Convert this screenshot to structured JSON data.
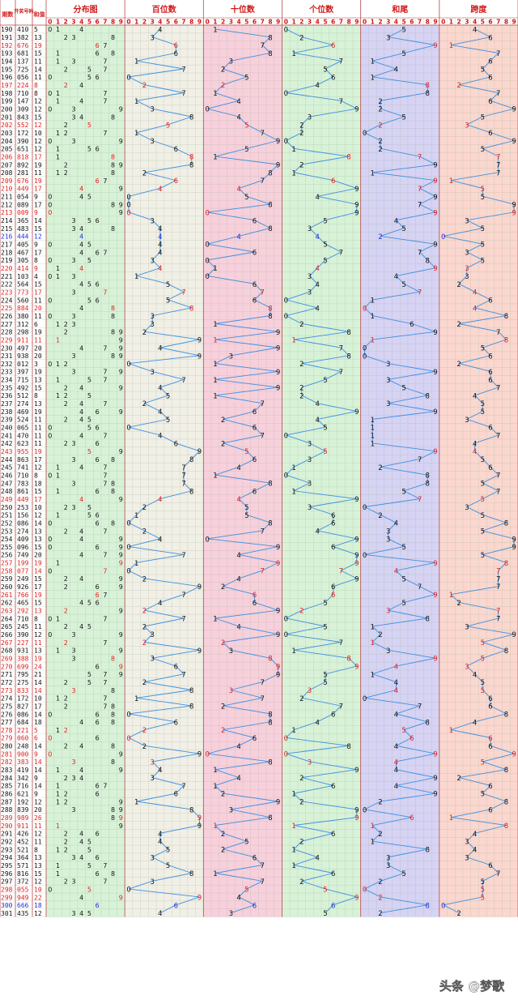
{
  "page": {
    "watermark": "头条 @梦歌"
  },
  "header": {
    "col_period": "期数",
    "col_number": "开奖号码",
    "col_sum": "和值",
    "digit_labels": [
      "0",
      "1",
      "2",
      "3",
      "4",
      "5",
      "6",
      "7",
      "8",
      "9"
    ]
  },
  "colors": {
    "line": "#3f8fe0",
    "highlight_red": "#e02020",
    "highlight_blue": "#1e2ee0",
    "normal": "#111111",
    "title": "#d01818",
    "border": "#b64a4a"
  },
  "chart_data": {
    "type": "table",
    "title": "",
    "sections": [
      {
        "key": "distribution",
        "title": "分布图",
        "type": "table",
        "color": "#d8f2d8"
      },
      {
        "key": "hundreds",
        "title": "百位数",
        "type": "line",
        "color": "#f1efe6"
      },
      {
        "key": "tens",
        "title": "十位数",
        "type": "line",
        "color": "#f8d0dc"
      },
      {
        "key": "units",
        "title": "个位数",
        "type": "line",
        "color": "#d8f2d8"
      },
      {
        "key": "sum_tail",
        "title": "和尾",
        "type": "line",
        "color": "#d7d3f4"
      },
      {
        "key": "span",
        "title": "跨度",
        "type": "line",
        "color": "#fbd7cf"
      }
    ],
    "rows": [
      [
        "190",
        "410",
        "5"
      ],
      [
        "191",
        "382",
        "13"
      ],
      [
        "192",
        "676",
        "19"
      ],
      [
        "193",
        "681",
        "15"
      ],
      [
        "194",
        "137",
        "11"
      ],
      [
        "195",
        "725",
        "14"
      ],
      [
        "196",
        "056",
        "11"
      ],
      [
        "197",
        "224",
        "8"
      ],
      [
        "198",
        "710",
        "8"
      ],
      [
        "199",
        "147",
        "12"
      ],
      [
        "200",
        "309",
        "12"
      ],
      [
        "201",
        "843",
        "15"
      ],
      [
        "202",
        "552",
        "12"
      ],
      [
        "203",
        "172",
        "10"
      ],
      [
        "204",
        "390",
        "12"
      ],
      [
        "205",
        "651",
        "12"
      ],
      [
        "206",
        "818",
        "17"
      ],
      [
        "207",
        "892",
        "19"
      ],
      [
        "208",
        "281",
        "11"
      ],
      [
        "209",
        "676",
        "19"
      ],
      [
        "210",
        "449",
        "17"
      ],
      [
        "211",
        "054",
        "9"
      ],
      [
        "212",
        "089",
        "17"
      ],
      [
        "213",
        "009",
        "9"
      ],
      [
        "214",
        "365",
        "14"
      ],
      [
        "215",
        "483",
        "15"
      ],
      [
        "216",
        "444",
        "12"
      ],
      [
        "217",
        "405",
        "9"
      ],
      [
        "218",
        "467",
        "17"
      ],
      [
        "219",
        "305",
        "8"
      ],
      [
        "220",
        "414",
        "9"
      ],
      [
        "221",
        "103",
        "4"
      ],
      [
        "222",
        "564",
        "15"
      ],
      [
        "223",
        "773",
        "17"
      ],
      [
        "224",
        "560",
        "11"
      ],
      [
        "225",
        "884",
        "20"
      ],
      [
        "226",
        "380",
        "11"
      ],
      [
        "227",
        "312",
        "6"
      ],
      [
        "228",
        "298",
        "19"
      ],
      [
        "229",
        "911",
        "11"
      ],
      [
        "230",
        "497",
        "20"
      ],
      [
        "231",
        "938",
        "20"
      ],
      [
        "232",
        "012",
        "3"
      ],
      [
        "233",
        "397",
        "19"
      ],
      [
        "234",
        "715",
        "13"
      ],
      [
        "235",
        "492",
        "15"
      ],
      [
        "236",
        "512",
        "8"
      ],
      [
        "237",
        "274",
        "13"
      ],
      [
        "238",
        "469",
        "19"
      ],
      [
        "239",
        "524",
        "11"
      ],
      [
        "240",
        "065",
        "11"
      ],
      [
        "241",
        "470",
        "11"
      ],
      [
        "242",
        "623",
        "11"
      ],
      [
        "243",
        "955",
        "19"
      ],
      [
        "244",
        "863",
        "17"
      ],
      [
        "245",
        "741",
        "12"
      ],
      [
        "246",
        "710",
        "8"
      ],
      [
        "247",
        "783",
        "18"
      ],
      [
        "248",
        "861",
        "15"
      ],
      [
        "249",
        "449",
        "17"
      ],
      [
        "250",
        "253",
        "10"
      ],
      [
        "251",
        "156",
        "12"
      ],
      [
        "252",
        "086",
        "14"
      ],
      [
        "253",
        "274",
        "13"
      ],
      [
        "254",
        "409",
        "13"
      ],
      [
        "255",
        "096",
        "15"
      ],
      [
        "256",
        "749",
        "20"
      ],
      [
        "257",
        "199",
        "19"
      ],
      [
        "258",
        "077",
        "14"
      ],
      [
        "259",
        "249",
        "15"
      ],
      [
        "260",
        "926",
        "17"
      ],
      [
        "261",
        "766",
        "19"
      ],
      [
        "262",
        "465",
        "15"
      ],
      [
        "263",
        "292",
        "13"
      ],
      [
        "264",
        "710",
        "8"
      ],
      [
        "265",
        "245",
        "11"
      ],
      [
        "266",
        "390",
        "12"
      ],
      [
        "267",
        "227",
        "11"
      ],
      [
        "268",
        "931",
        "13"
      ],
      [
        "269",
        "388",
        "19"
      ],
      [
        "270",
        "699",
        "24"
      ],
      [
        "271",
        "795",
        "21"
      ],
      [
        "272",
        "275",
        "14"
      ],
      [
        "273",
        "833",
        "14"
      ],
      [
        "274",
        "172",
        "10"
      ],
      [
        "275",
        "827",
        "17"
      ],
      [
        "276",
        "086",
        "14"
      ],
      [
        "277",
        "684",
        "18"
      ],
      [
        "278",
        "221",
        "5"
      ],
      [
        "279",
        "060",
        "6"
      ],
      [
        "280",
        "248",
        "14"
      ],
      [
        "281",
        "900",
        "9"
      ],
      [
        "282",
        "383",
        "14"
      ],
      [
        "283",
        "419",
        "14"
      ],
      [
        "284",
        "342",
        "9"
      ],
      [
        "285",
        "716",
        "14"
      ],
      [
        "286",
        "621",
        "9"
      ],
      [
        "287",
        "192",
        "12"
      ],
      [
        "288",
        "839",
        "20"
      ],
      [
        "289",
        "989",
        "26"
      ],
      [
        "290",
        "911",
        "11"
      ],
      [
        "291",
        "426",
        "12"
      ],
      [
        "292",
        "452",
        "11"
      ],
      [
        "293",
        "521",
        "8"
      ],
      [
        "294",
        "364",
        "13"
      ],
      [
        "295",
        "571",
        "13"
      ],
      [
        "296",
        "816",
        "15"
      ],
      [
        "297",
        "372",
        "12"
      ],
      [
        "298",
        "055",
        "10"
      ],
      [
        "299",
        "949",
        "22"
      ],
      [
        "300",
        "666",
        "18"
      ],
      [
        "301",
        "435",
        "12"
      ]
    ]
  }
}
